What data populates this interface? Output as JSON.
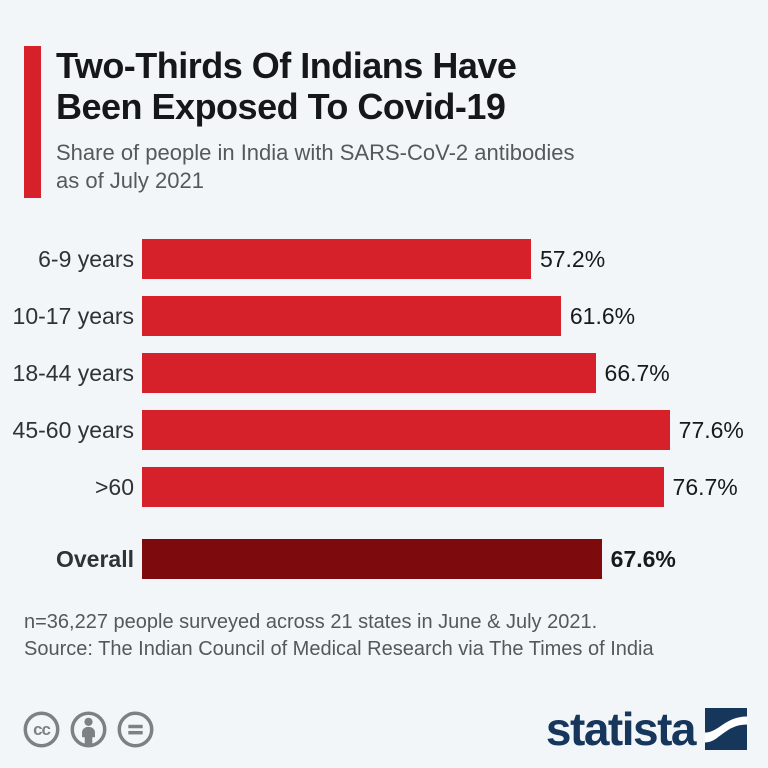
{
  "background": "#f3f6f9",
  "header": {
    "accent_color": "#d6202a",
    "title_lines": [
      "Two-Thirds Of Indians Have",
      "Been Exposed To Covid-19"
    ],
    "subtitle_lines": [
      "Share of people in India with SARS-CoV-2 antibodies",
      "as of July 2021"
    ]
  },
  "chart_data": {
    "type": "bar",
    "orientation": "horizontal",
    "title": "Two-Thirds Of Indians Have Been Exposed To Covid-19",
    "subtitle": "Share of people in India with SARS-CoV-2 antibodies as of July 2021",
    "categories": [
      "6-9 years",
      "10-17 years",
      "18-44 years",
      "45-60 years",
      ">60"
    ],
    "values": [
      57.2,
      61.6,
      66.7,
      77.6,
      76.7
    ],
    "value_labels": [
      "57.2%",
      "61.6%",
      "66.7%",
      "77.6%",
      "76.7%"
    ],
    "overall": {
      "label": "Overall",
      "value": 67.6,
      "value_label": "67.6%"
    },
    "unit": "%",
    "xlim": [
      0,
      80
    ],
    "grid": false,
    "legend": false,
    "bar_color": "#d6202a",
    "overall_bar_color": "#7d0b0d"
  },
  "footer": {
    "note": "n=36,227 people surveyed across 21 states in June & July 2021.",
    "source": "Source: The Indian Council of Medical Research via The Times of India"
  },
  "branding": {
    "logo_text": "statista",
    "logo_color": "#16365c",
    "license_icon_color": "#7e8184",
    "license_icons": [
      "cc-icon",
      "attribution-icon",
      "no-derivatives-icon"
    ]
  }
}
